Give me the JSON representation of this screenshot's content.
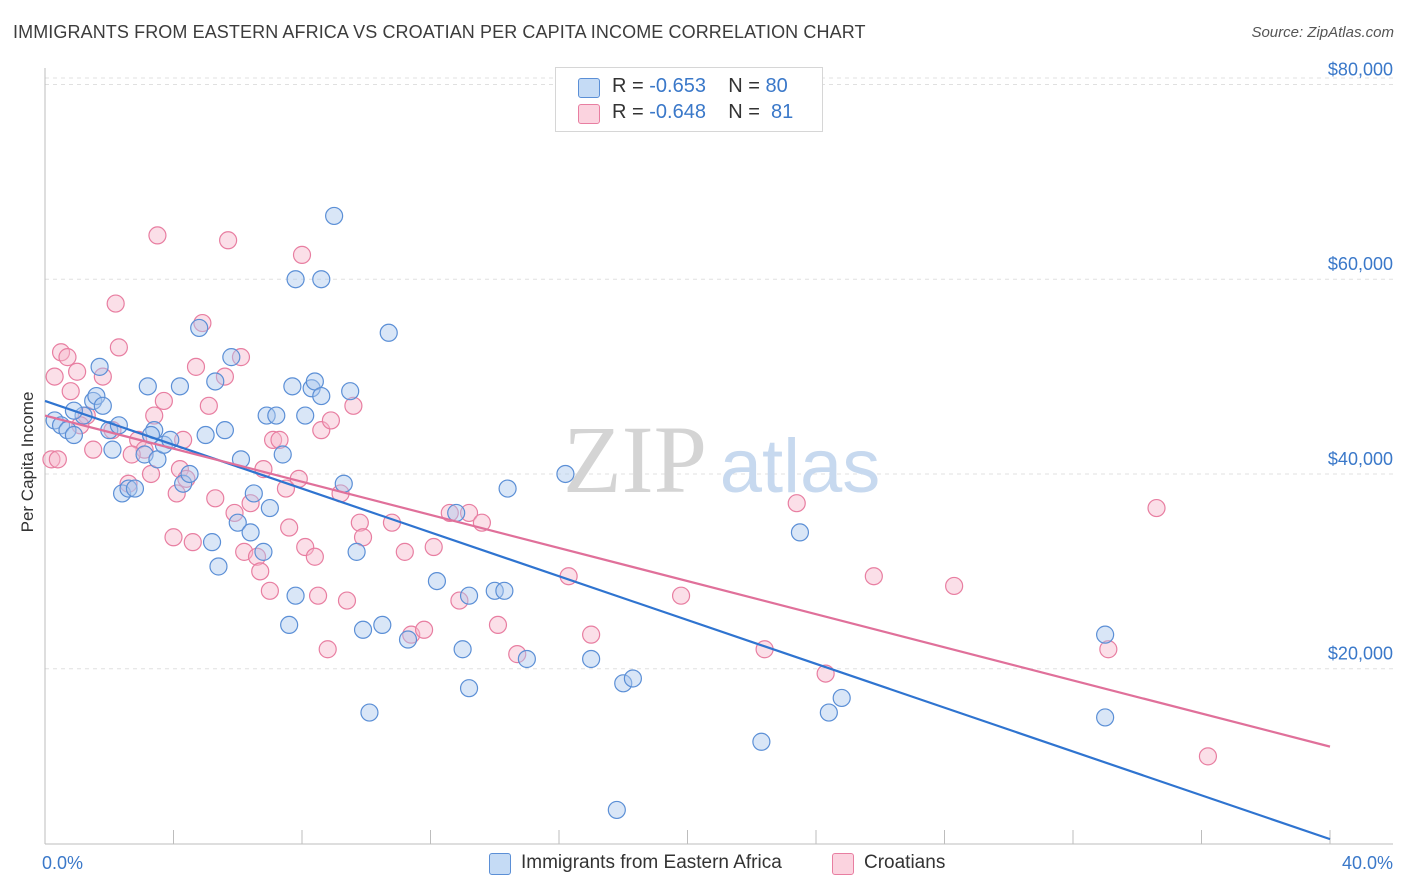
{
  "title": "IMMIGRANTS FROM EASTERN AFRICA VS CROATIAN PER CAPITA INCOME CORRELATION CHART",
  "source": "Source: ZipAtlas.com",
  "watermark": {
    "zip": "ZIP",
    "atlas": "atlas"
  },
  "colors": {
    "blue_fill": "#aac8ee",
    "blue_stroke": "#5b8fd6",
    "blue_line": "#2f74d0",
    "pink_fill": "#f6b9cc",
    "pink_stroke": "#e87ea1",
    "pink_line": "#e0709a",
    "axis_text": "#3a78c9",
    "grid": "#e0e0e0"
  },
  "legend": {
    "rows": [
      {
        "r_label": "R = ",
        "r_value": "-0.653",
        "n_label": "N = ",
        "n_value": "80",
        "color": "blue"
      },
      {
        "r_label": "R = ",
        "r_value": "-0.648",
        "n_label": "N = ",
        "n_value": " 81",
        "color": "pink"
      }
    ]
  },
  "bottom_legend": {
    "items": [
      {
        "label": "Immigrants from Eastern Africa",
        "color": "blue"
      },
      {
        "label": "Croatians",
        "color": "pink"
      }
    ]
  },
  "chart_data": {
    "type": "scatter",
    "title": "IMMIGRANTS FROM EASTERN AFRICA VS CROATIAN PER CAPITA INCOME CORRELATION CHART",
    "xlabel": "",
    "ylabel": "Per Capita Income",
    "xlim": [
      0,
      40
    ],
    "ylim": [
      2000,
      82000
    ],
    "x_tick_labels": [
      "0.0%",
      "40.0%"
    ],
    "y_ticks": [
      20000,
      40000,
      60000,
      80000
    ],
    "y_tick_labels": [
      "$20,000",
      "$40,000",
      "$60,000",
      "$80,000"
    ],
    "grid": true,
    "legend_position": "top-center",
    "series": [
      {
        "name": "Immigrants from Eastern Africa",
        "color": "blue",
        "trend": {
          "x": [
            0,
            40
          ],
          "y": [
            47500,
            2500
          ]
        },
        "points": [
          [
            0.3,
            45500
          ],
          [
            0.5,
            45000
          ],
          [
            0.7,
            44500
          ],
          [
            0.9,
            44000
          ],
          [
            1.2,
            46000
          ],
          [
            1.5,
            47500
          ],
          [
            1.6,
            48000
          ],
          [
            1.7,
            51000
          ],
          [
            1.8,
            47000
          ],
          [
            2.0,
            44500
          ],
          [
            2.1,
            42500
          ],
          [
            2.3,
            45000
          ],
          [
            2.4,
            38000
          ],
          [
            2.6,
            38500
          ],
          [
            2.8,
            38500
          ],
          [
            3.1,
            42000
          ],
          [
            3.2,
            49000
          ],
          [
            3.4,
            44500
          ],
          [
            3.5,
            41500
          ],
          [
            3.7,
            43000
          ],
          [
            3.9,
            43500
          ],
          [
            4.2,
            49000
          ],
          [
            4.3,
            39000
          ],
          [
            4.5,
            40000
          ],
          [
            4.8,
            55000
          ],
          [
            5.0,
            44000
          ],
          [
            5.2,
            33000
          ],
          [
            5.3,
            49500
          ],
          [
            5.4,
            30500
          ],
          [
            5.6,
            44500
          ],
          [
            5.8,
            52000
          ],
          [
            6.0,
            35000
          ],
          [
            6.1,
            41500
          ],
          [
            6.4,
            34000
          ],
          [
            6.8,
            32000
          ],
          [
            6.9,
            46000
          ],
          [
            7.0,
            36500
          ],
          [
            7.2,
            46000
          ],
          [
            7.4,
            42000
          ],
          [
            7.6,
            24500
          ],
          [
            7.7,
            49000
          ],
          [
            7.8,
            27500
          ],
          [
            7.8,
            60000
          ],
          [
            8.1,
            46000
          ],
          [
            8.3,
            48800
          ],
          [
            8.4,
            49500
          ],
          [
            8.6,
            48000
          ],
          [
            8.6,
            60000
          ],
          [
            9.0,
            66500
          ],
          [
            9.3,
            39000
          ],
          [
            9.5,
            48500
          ],
          [
            9.7,
            32000
          ],
          [
            9.9,
            24000
          ],
          [
            10.1,
            15500
          ],
          [
            10.5,
            24500
          ],
          [
            10.7,
            54500
          ],
          [
            11.3,
            23000
          ],
          [
            12.8,
            36000
          ],
          [
            13.0,
            22000
          ],
          [
            13.2,
            27500
          ],
          [
            13.2,
            18000
          ],
          [
            14.0,
            28000
          ],
          [
            14.3,
            28000
          ],
          [
            14.4,
            38500
          ],
          [
            15.0,
            21000
          ],
          [
            16.2,
            40000
          ],
          [
            17.0,
            21000
          ],
          [
            17.8,
            5500
          ],
          [
            18.0,
            18500
          ],
          [
            18.3,
            19000
          ],
          [
            22.3,
            12500
          ],
          [
            23.5,
            34000
          ],
          [
            24.4,
            15500
          ],
          [
            24.8,
            17000
          ],
          [
            33.0,
            23500
          ],
          [
            33.0,
            15000
          ],
          [
            0.9,
            46500
          ],
          [
            3.3,
            44000
          ],
          [
            6.5,
            38000
          ],
          [
            12.2,
            29000
          ]
        ]
      },
      {
        "name": "Croatians",
        "color": "pink",
        "trend": {
          "x": [
            0,
            40
          ],
          "y": [
            46000,
            12000
          ]
        },
        "points": [
          [
            0.2,
            41500
          ],
          [
            0.3,
            50000
          ],
          [
            0.5,
            52500
          ],
          [
            0.7,
            52000
          ],
          [
            0.8,
            48500
          ],
          [
            1.0,
            50500
          ],
          [
            1.3,
            46000
          ],
          [
            1.5,
            42500
          ],
          [
            1.8,
            50000
          ],
          [
            2.1,
            44500
          ],
          [
            2.2,
            57500
          ],
          [
            2.3,
            53000
          ],
          [
            2.6,
            39000
          ],
          [
            2.9,
            43500
          ],
          [
            3.1,
            42500
          ],
          [
            3.3,
            40000
          ],
          [
            3.4,
            46000
          ],
          [
            3.5,
            64500
          ],
          [
            3.7,
            47500
          ],
          [
            4.0,
            33500
          ],
          [
            4.1,
            38000
          ],
          [
            4.2,
            40500
          ],
          [
            4.3,
            43500
          ],
          [
            4.6,
            33000
          ],
          [
            4.7,
            51000
          ],
          [
            4.9,
            55500
          ],
          [
            5.1,
            47000
          ],
          [
            5.3,
            37500
          ],
          [
            5.6,
            50000
          ],
          [
            5.7,
            64000
          ],
          [
            5.9,
            36000
          ],
          [
            6.1,
            52000
          ],
          [
            6.2,
            32000
          ],
          [
            6.4,
            37000
          ],
          [
            6.6,
            31500
          ],
          [
            6.8,
            40500
          ],
          [
            7.0,
            28000
          ],
          [
            7.1,
            43500
          ],
          [
            7.3,
            43500
          ],
          [
            7.6,
            34500
          ],
          [
            7.9,
            39500
          ],
          [
            8.1,
            32500
          ],
          [
            8.0,
            62500
          ],
          [
            8.4,
            31500
          ],
          [
            8.5,
            27500
          ],
          [
            8.6,
            44500
          ],
          [
            8.9,
            45500
          ],
          [
            8.8,
            22000
          ],
          [
            9.2,
            38000
          ],
          [
            9.4,
            27000
          ],
          [
            9.6,
            47000
          ],
          [
            9.8,
            35000
          ],
          [
            9.9,
            33500
          ],
          [
            10.8,
            35000
          ],
          [
            11.4,
            23500
          ],
          [
            11.8,
            24000
          ],
          [
            12.1,
            32500
          ],
          [
            12.6,
            36000
          ],
          [
            12.9,
            27000
          ],
          [
            13.2,
            36000
          ],
          [
            13.6,
            35000
          ],
          [
            14.1,
            24500
          ],
          [
            14.7,
            21500
          ],
          [
            16.3,
            29500
          ],
          [
            17.0,
            23500
          ],
          [
            19.8,
            27500
          ],
          [
            22.4,
            22000
          ],
          [
            23.4,
            37000
          ],
          [
            24.3,
            19500
          ],
          [
            25.8,
            29500
          ],
          [
            28.3,
            28500
          ],
          [
            33.1,
            22000
          ],
          [
            34.6,
            36500
          ],
          [
            36.2,
            11000
          ],
          [
            0.4,
            41500
          ],
          [
            1.1,
            45000
          ],
          [
            2.7,
            42000
          ],
          [
            4.4,
            39500
          ],
          [
            6.7,
            30000
          ],
          [
            7.5,
            38500
          ],
          [
            11.2,
            32000
          ]
        ]
      }
    ]
  }
}
